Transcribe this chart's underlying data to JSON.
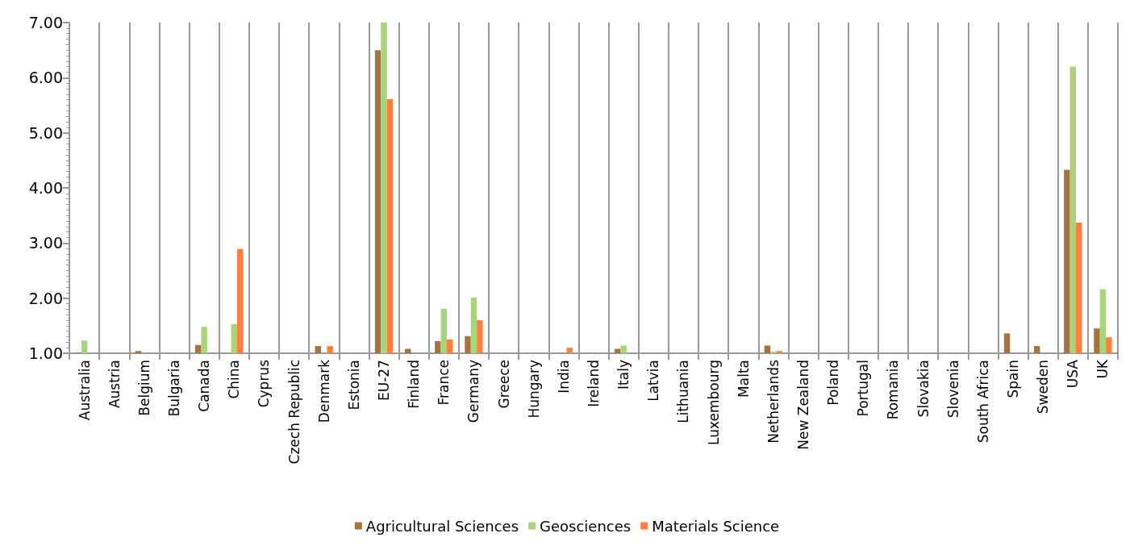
{
  "chart_data": {
    "type": "bar",
    "categories": [
      "Australia",
      "Austria",
      "Belgium",
      "Bulgaria",
      "Canada",
      "China",
      "Cyprus",
      "Czech Republic",
      "Denmark",
      "Estonia",
      "EU-27",
      "Finland",
      "France",
      "Germany",
      "Greece",
      "Hungary",
      "India",
      "Ireland",
      "Italy",
      "Latvia",
      "Lithuania",
      "Luxembourg",
      "Malta",
      "Netherlands",
      "New Zealand",
      "Poland",
      "Portugal",
      "Romania",
      "Slovakia",
      "Slovenia",
      "South Africa",
      "Spain",
      "Sweden",
      "USA",
      "UK"
    ],
    "series": [
      {
        "name": "Agricultural Sciences",
        "color": "#a5733f",
        "values": [
          1.01,
          1,
          1.04,
          1,
          1.15,
          1,
          1,
          1,
          1.13,
          1,
          6.5,
          1.08,
          1.22,
          1.31,
          1,
          1,
          1,
          1,
          1.08,
          1,
          1,
          1,
          1,
          1.14,
          1,
          1,
          1,
          1,
          1,
          1,
          1,
          1.36,
          1.13,
          4.33,
          1.45
        ]
      },
      {
        "name": "Geosciences",
        "color": "#a9d47a",
        "values": [
          1.23,
          1,
          1,
          1,
          1.48,
          1.53,
          1,
          1,
          1,
          1,
          7,
          1,
          1.81,
          2.01,
          1,
          1,
          1,
          1,
          1.14,
          1,
          1,
          1,
          1,
          1.03,
          1,
          1,
          1,
          1,
          1,
          1,
          1,
          1,
          1,
          6.2,
          2.16
        ]
      },
      {
        "name": "Materials Science",
        "color": "#ff7f3f",
        "values": [
          1,
          1,
          1,
          1,
          1,
          2.89,
          1,
          1,
          1.13,
          1,
          5.61,
          1,
          1.25,
          1.6,
          1,
          1,
          1.1,
          1,
          1,
          1,
          1,
          1,
          1,
          1.04,
          1,
          1,
          1,
          1,
          1,
          1,
          1,
          1,
          1,
          3.37,
          1.29
        ]
      }
    ],
    "ylim": [
      1,
      7
    ],
    "yticks": [
      {
        "value": 1,
        "label": "1.00"
      },
      {
        "value": 2,
        "label": "2.00"
      },
      {
        "value": 3,
        "label": "3.00"
      },
      {
        "value": 4,
        "label": "4.00"
      },
      {
        "value": 5,
        "label": "5.00"
      },
      {
        "value": 6,
        "label": "6.00"
      },
      {
        "value": 7,
        "label": "7.00"
      }
    ],
    "grid": "x",
    "legend": "bottom"
  }
}
